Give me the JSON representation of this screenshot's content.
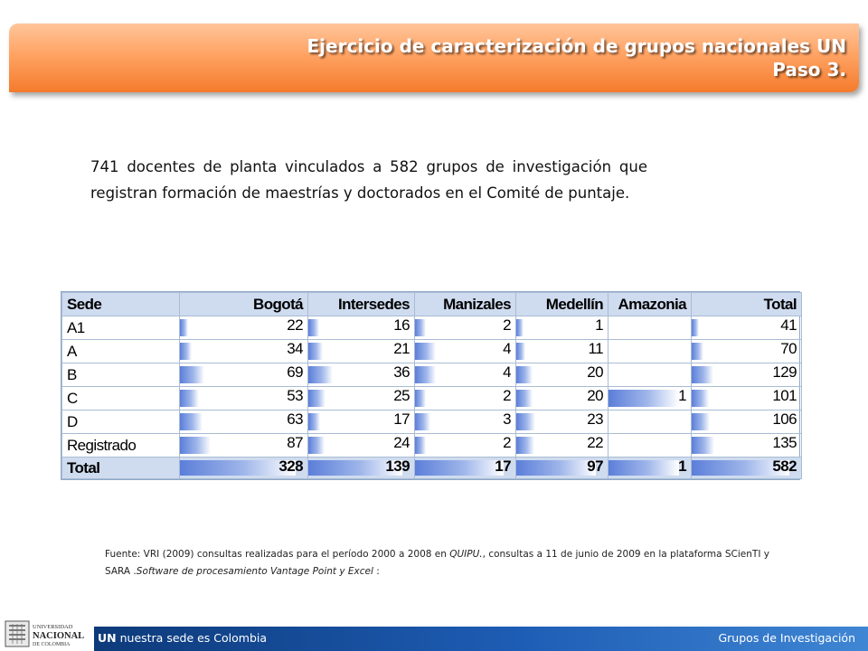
{
  "header": {
    "title_line1": "Ejercicio de caracterización de grupos nacionales UN",
    "title_line2": "Paso 3."
  },
  "intro": {
    "text": "741 docentes de planta vinculados a 582 grupos de investigación  que registran formación de maestrías y doctorados en el Comité de puntaje."
  },
  "table": {
    "columns": [
      "Sede",
      "Bogotá",
      "Intersedes",
      "Manizales",
      "Medellín",
      "Amazonia",
      "Total"
    ],
    "rows": [
      {
        "label": "A1",
        "values": [
          "22",
          "16",
          "2",
          "1",
          "",
          "41"
        ]
      },
      {
        "label": "A",
        "values": [
          "34",
          "21",
          "4",
          "11",
          "",
          "70"
        ]
      },
      {
        "label": "B",
        "values": [
          "69",
          "36",
          "4",
          "20",
          "",
          "129"
        ]
      },
      {
        "label": "C",
        "values": [
          "53",
          "25",
          "2",
          "20",
          "1",
          "101"
        ]
      },
      {
        "label": "D",
        "values": [
          "63",
          "17",
          "3",
          "23",
          "",
          "106"
        ]
      },
      {
        "label": "Registrado",
        "values": [
          "87",
          "24",
          "2",
          "22",
          "",
          "135"
        ]
      }
    ],
    "total": {
      "label": "Total",
      "values": [
        "328",
        "139",
        "17",
        "97",
        "1",
        "582"
      ]
    },
    "bar_color": "#5b7ed9"
  },
  "source": {
    "prefix": "Fuente: VRI (2009) consultas realizadas para el período 2000 a 2008 en ",
    "quipu": "QUIPU.",
    "middle": ", consultas a 11 de junio de 2009 en la plataforma SCienTI y SARA .",
    "software": "Software de procesamiento Vantage Point y Excel",
    "suffix": " :"
  },
  "footer": {
    "logo_line1": "UNIVERSIDAD",
    "logo_line2": "NACIONAL",
    "logo_line3": "DE COLOMBIA",
    "left_bold": "UN",
    "left_text": " nuestra sede es Colombia",
    "right_text": "Grupos de Investigación"
  },
  "colors": {
    "banner": "#f47b2c",
    "table_header": "#cfdbef",
    "footer": "#1e5db5"
  }
}
